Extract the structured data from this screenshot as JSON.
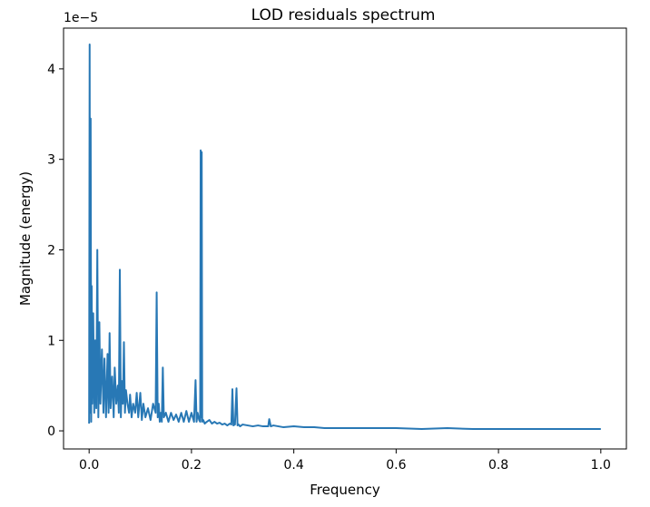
{
  "chart_data": {
    "type": "line",
    "title": "LOD residuals spectrum",
    "xlabel": "Frequency",
    "ylabel": "Magnitude (energy)",
    "y_offset_text": "1e−5",
    "xlim": [
      -0.05,
      1.05
    ],
    "ylim": [
      -0.2,
      4.45
    ],
    "x_ticks": [
      0.0,
      0.2,
      0.4,
      0.6,
      0.8,
      1.0
    ],
    "x_tick_labels": [
      "0.0",
      "0.2",
      "0.4",
      "0.6",
      "0.8",
      "1.0"
    ],
    "y_ticks": [
      0,
      1,
      2,
      3,
      4
    ],
    "y_tick_labels": [
      "0",
      "1",
      "2",
      "3",
      "4"
    ],
    "grid": false,
    "line_color": "#2878b5",
    "series": [
      {
        "x": [
          0.0,
          0.001,
          0.002,
          0.003,
          0.004,
          0.005,
          0.006,
          0.008,
          0.01,
          0.012,
          0.014,
          0.016,
          0.018,
          0.02,
          0.022,
          0.025,
          0.028,
          0.03,
          0.033,
          0.036,
          0.038,
          0.04,
          0.042,
          0.045,
          0.048,
          0.05,
          0.053,
          0.056,
          0.058,
          0.06,
          0.062,
          0.064,
          0.066,
          0.068,
          0.07,
          0.072,
          0.075,
          0.078,
          0.08,
          0.083,
          0.086,
          0.09,
          0.093,
          0.096,
          0.1,
          0.103,
          0.106,
          0.11,
          0.115,
          0.12,
          0.125,
          0.13,
          0.132,
          0.134,
          0.136,
          0.138,
          0.14,
          0.142,
          0.144,
          0.146,
          0.15,
          0.155,
          0.16,
          0.165,
          0.17,
          0.175,
          0.18,
          0.185,
          0.19,
          0.195,
          0.2,
          0.205,
          0.208,
          0.21,
          0.212,
          0.215,
          0.217,
          0.218,
          0.219,
          0.22,
          0.221,
          0.223,
          0.226,
          0.23,
          0.235,
          0.24,
          0.245,
          0.25,
          0.255,
          0.26,
          0.265,
          0.27,
          0.275,
          0.278,
          0.28,
          0.282,
          0.285,
          0.288,
          0.29,
          0.292,
          0.295,
          0.3,
          0.31,
          0.32,
          0.33,
          0.34,
          0.35,
          0.352,
          0.355,
          0.36,
          0.37,
          0.38,
          0.4,
          0.42,
          0.44,
          0.46,
          0.48,
          0.5,
          0.55,
          0.6,
          0.65,
          0.7,
          0.75,
          0.8,
          0.85,
          0.9,
          0.95,
          1.0
        ],
        "y": [
          0.08,
          4.27,
          0.2,
          3.45,
          0.1,
          1.6,
          0.3,
          1.3,
          0.2,
          1.0,
          0.25,
          2.0,
          0.15,
          1.2,
          0.3,
          0.9,
          0.2,
          0.8,
          0.15,
          0.85,
          0.2,
          1.08,
          0.25,
          0.6,
          0.15,
          0.7,
          0.3,
          0.5,
          0.2,
          1.78,
          0.15,
          0.55,
          0.3,
          0.98,
          0.2,
          0.45,
          0.3,
          0.2,
          0.4,
          0.15,
          0.3,
          0.2,
          0.42,
          0.15,
          0.42,
          0.12,
          0.3,
          0.15,
          0.25,
          0.12,
          0.3,
          0.2,
          1.53,
          0.15,
          0.3,
          0.1,
          0.2,
          0.1,
          0.7,
          0.15,
          0.2,
          0.1,
          0.2,
          0.12,
          0.18,
          0.1,
          0.2,
          0.1,
          0.22,
          0.1,
          0.2,
          0.1,
          0.56,
          0.1,
          0.2,
          0.12,
          0.1,
          3.1,
          0.15,
          3.08,
          0.1,
          0.12,
          0.08,
          0.1,
          0.12,
          0.08,
          0.1,
          0.08,
          0.09,
          0.07,
          0.08,
          0.06,
          0.08,
          0.07,
          0.46,
          0.06,
          0.07,
          0.47,
          0.06,
          0.07,
          0.05,
          0.07,
          0.06,
          0.05,
          0.06,
          0.05,
          0.05,
          0.13,
          0.05,
          0.06,
          0.05,
          0.04,
          0.05,
          0.04,
          0.04,
          0.03,
          0.03,
          0.03,
          0.03,
          0.03,
          0.02,
          0.03,
          0.02,
          0.02,
          0.02,
          0.02,
          0.02,
          0.02
        ]
      }
    ]
  }
}
